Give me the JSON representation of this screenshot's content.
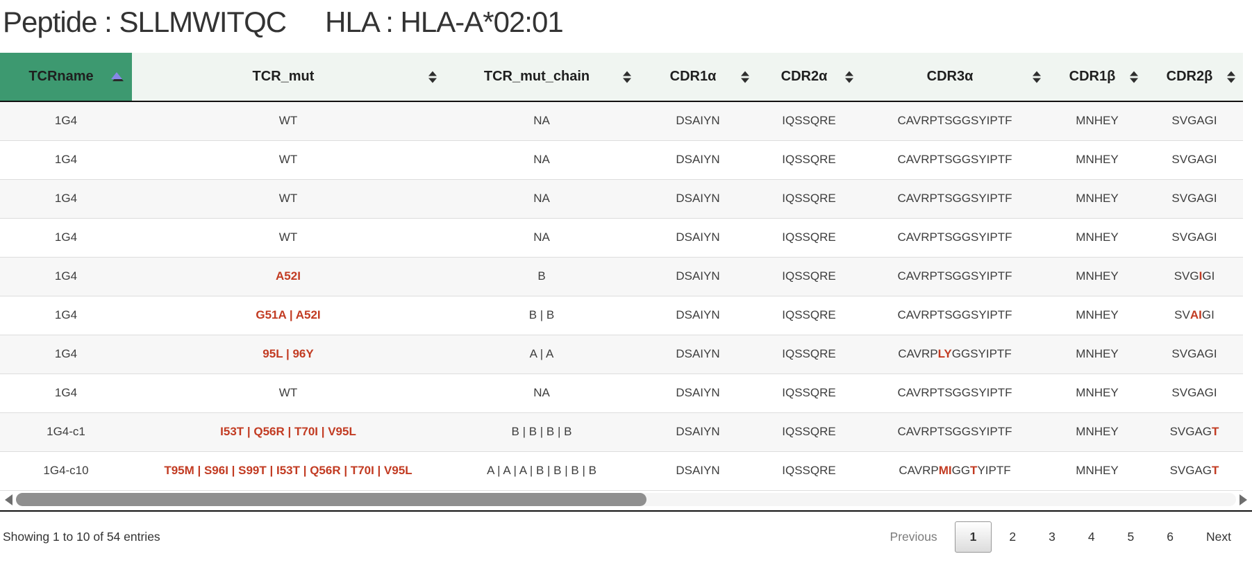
{
  "title": {
    "peptide": "Peptide : SLLMWITQC",
    "hla": "HLA : HLA-A*02:01"
  },
  "colors": {
    "sorted_header_green": "#3D9970",
    "mutation_red": "#c23b22",
    "active_sort_arrow": "#8787e8"
  },
  "table": {
    "columns": [
      {
        "id": "tcrname",
        "label": "TCRname",
        "sorted": "asc"
      },
      {
        "id": "tcr-mut",
        "label": "TCR_mut",
        "sorted": "none"
      },
      {
        "id": "tcr-mut-chain",
        "label": "TCR_mut_chain",
        "sorted": "none"
      },
      {
        "id": "cdr1a",
        "label": "CDR1α",
        "sorted": "none"
      },
      {
        "id": "cdr2a",
        "label": "CDR2α",
        "sorted": "none"
      },
      {
        "id": "cdr3a",
        "label": "CDR3α",
        "sorted": "none"
      },
      {
        "id": "cdr1b",
        "label": "CDR1β",
        "sorted": "none"
      },
      {
        "id": "cdr2b",
        "label": "CDR2β",
        "sorted": "none"
      }
    ],
    "rows": [
      [
        "1G4",
        "WT",
        "NA",
        "DSAIYN",
        "IQSSQRE",
        "CAVRPTSGGSYIPTF",
        "MNHEY",
        "SVGAGI"
      ],
      [
        "1G4",
        "WT",
        "NA",
        "DSAIYN",
        "IQSSQRE",
        "CAVRPTSGGSYIPTF",
        "MNHEY",
        "SVGAGI"
      ],
      [
        "1G4",
        "WT",
        "NA",
        "DSAIYN",
        "IQSSQRE",
        "CAVRPTSGGSYIPTF",
        "MNHEY",
        "SVGAGI"
      ],
      [
        "1G4",
        "WT",
        "NA",
        "DSAIYN",
        "IQSSQRE",
        "CAVRPTSGGSYIPTF",
        "MNHEY",
        "SVGAGI"
      ],
      [
        "1G4",
        [
          {
            "t": "A52I",
            "red": true
          }
        ],
        "B",
        "DSAIYN",
        "IQSSQRE",
        "CAVRPTSGGSYIPTF",
        "MNHEY",
        [
          {
            "t": "SVG"
          },
          {
            "t": "I",
            "red": true
          },
          {
            "t": "GI"
          }
        ]
      ],
      [
        "1G4",
        [
          {
            "t": "G51A | A52I",
            "red": true
          }
        ],
        "B | B",
        "DSAIYN",
        "IQSSQRE",
        "CAVRPTSGGSYIPTF",
        "MNHEY",
        [
          {
            "t": "SV"
          },
          {
            "t": "AI",
            "red": true
          },
          {
            "t": "GI"
          }
        ]
      ],
      [
        "1G4",
        [
          {
            "t": "95L | 96Y",
            "red": true
          }
        ],
        "A | A",
        "DSAIYN",
        "IQSSQRE",
        [
          {
            "t": "CAVRP"
          },
          {
            "t": "LY",
            "red": true
          },
          {
            "t": "GGSYIPTF"
          }
        ],
        "MNHEY",
        "SVGAGI"
      ],
      [
        "1G4",
        "WT",
        "NA",
        "DSAIYN",
        "IQSSQRE",
        "CAVRPTSGGSYIPTF",
        "MNHEY",
        "SVGAGI"
      ],
      [
        "1G4-c1",
        [
          {
            "t": "I53T | Q56R | T70I | V95L",
            "red": true
          }
        ],
        "B | B | B | B",
        "DSAIYN",
        "IQSSQRE",
        "CAVRPTSGGSYIPTF",
        "MNHEY",
        [
          {
            "t": "SVGAG"
          },
          {
            "t": "T",
            "red": true
          }
        ]
      ],
      [
        "1G4-c10",
        [
          {
            "t": "T95M | S96I | S99T | I53T | Q56R | T70I | V95L",
            "red": true
          }
        ],
        "A | A | A | B | B | B | B",
        "DSAIYN",
        "IQSSQRE",
        [
          {
            "t": "CAVRP"
          },
          {
            "t": "MI",
            "red": true
          },
          {
            "t": "GG"
          },
          {
            "t": "T",
            "red": true
          },
          {
            "t": "YIPTF"
          }
        ],
        "MNHEY",
        [
          {
            "t": "SVGAG"
          },
          {
            "t": "T",
            "red": true
          }
        ]
      ]
    ]
  },
  "footer": {
    "info": "Showing 1 to 10 of 54 entries",
    "pagination": {
      "previous_label": "Previous",
      "next_label": "Next",
      "pages": [
        "1",
        "2",
        "3",
        "4",
        "5",
        "6"
      ],
      "active_page": "1"
    }
  }
}
